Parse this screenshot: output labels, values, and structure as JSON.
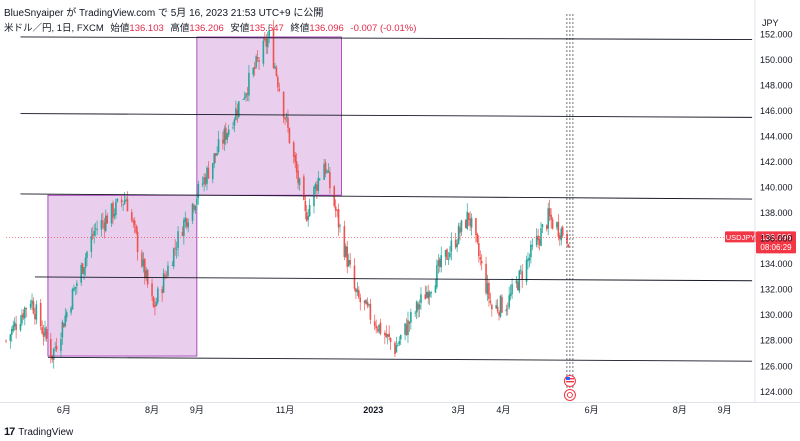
{
  "header": {
    "publisher": "BlueSnyaiper が TradingView.com で 5月 16, 2023 21:53 UTC+9 に公開"
  },
  "symbol_line": {
    "name": "米ドル／円, 1日, FXCM",
    "open_label": "始値",
    "open": "136.103",
    "high_label": "高値",
    "high": "136.206",
    "low_label": "安値",
    "low": "135.647",
    "close_label": "終値",
    "close": "136.096",
    "change": "-0.007 (-0.01%)"
  },
  "price_tag": {
    "symbol": "USDJPY",
    "price": "136.096",
    "countdown": "08:06:29"
  },
  "footer": {
    "brand": "TradingView"
  },
  "colors": {
    "up": "#26a69a",
    "down": "#ef5350",
    "box_fill": "#e1bee7",
    "box_stroke": "#9c27b0",
    "line": "#131722",
    "price_tag": "#f23645"
  },
  "chart_data": {
    "type": "candlestick",
    "currency": "JPY",
    "y_axis_ticks": [
      124,
      126,
      128,
      130,
      132,
      134,
      136,
      138,
      140,
      142,
      144,
      146,
      148,
      150,
      152
    ],
    "y_tick_labels": [
      "124.000",
      "126.000",
      "128.000",
      "130.000",
      "132.000",
      "134.000",
      "136.000",
      "138.000",
      "140.000",
      "142.000",
      "144.000",
      "146.000",
      "148.000",
      "150.000",
      "152.000"
    ],
    "ylim": [
      123.2,
      153.6
    ],
    "x_range": [
      "2022-04-22",
      "2023-09-22"
    ],
    "x_ticks": [
      {
        "date": "2022-06-01",
        "label": "6月"
      },
      {
        "date": "2022-08-01",
        "label": "8月"
      },
      {
        "date": "2022-09-01",
        "label": "9月"
      },
      {
        "date": "2022-11-01",
        "label": "11月"
      },
      {
        "date": "2023-01-01",
        "label": "2023"
      },
      {
        "date": "2023-03-01",
        "label": "3月"
      },
      {
        "date": "2023-04-01",
        "label": "4月"
      },
      {
        "date": "2023-06-01",
        "label": "6月"
      },
      {
        "date": "2023-08-01",
        "label": "8月"
      },
      {
        "date": "2023-09-01",
        "label": "9月"
      }
    ],
    "price_line": 136.096,
    "ohlc_keypoints": [
      [
        "2022-04-22",
        128.0
      ],
      [
        "2022-05-09",
        131.3
      ],
      [
        "2022-05-24",
        126.9
      ],
      [
        "2022-06-22",
        136.6
      ],
      [
        "2022-07-14",
        139.2
      ],
      [
        "2022-08-02",
        130.5
      ],
      [
        "2022-08-22",
        137.0
      ],
      [
        "2022-09-22",
        144.5
      ],
      [
        "2022-10-21",
        151.8
      ],
      [
        "2022-11-15",
        137.7
      ],
      [
        "2022-11-28",
        142.0
      ],
      [
        "2022-12-20",
        131.5
      ],
      [
        "2023-01-16",
        127.4
      ],
      [
        "2023-03-08",
        137.8
      ],
      [
        "2023-03-24",
        130.5
      ],
      [
        "2023-04-04",
        131.0
      ],
      [
        "2023-05-02",
        137.6
      ],
      [
        "2023-05-16",
        136.1
      ]
    ],
    "trend_lines": [
      {
        "from": [
          "2022-05-02",
          151.8
        ],
        "to": [
          "2023-09-20",
          151.6
        ]
      },
      {
        "from": [
          "2022-05-02",
          145.8
        ],
        "to": [
          "2023-09-20",
          145.5
        ]
      },
      {
        "from": [
          "2022-05-02",
          139.5
        ],
        "to": [
          "2023-09-20",
          139.1
        ]
      },
      {
        "from": [
          "2022-05-12",
          133.0
        ],
        "to": [
          "2023-09-20",
          132.7
        ]
      },
      {
        "from": [
          "2022-05-21",
          126.7
        ],
        "to": [
          "2023-09-20",
          126.4
        ]
      }
    ],
    "boxes": [
      {
        "from": [
          "2022-05-21",
          139.4
        ],
        "to": [
          "2022-09-01",
          126.8
        ]
      },
      {
        "from": [
          "2022-09-01",
          151.8
        ],
        "to": [
          "2022-12-10",
          139.4
        ]
      }
    ],
    "vertical_marker_date": "2023-05-17",
    "event_icons": [
      "us-flag-icon",
      "event-icon"
    ]
  }
}
